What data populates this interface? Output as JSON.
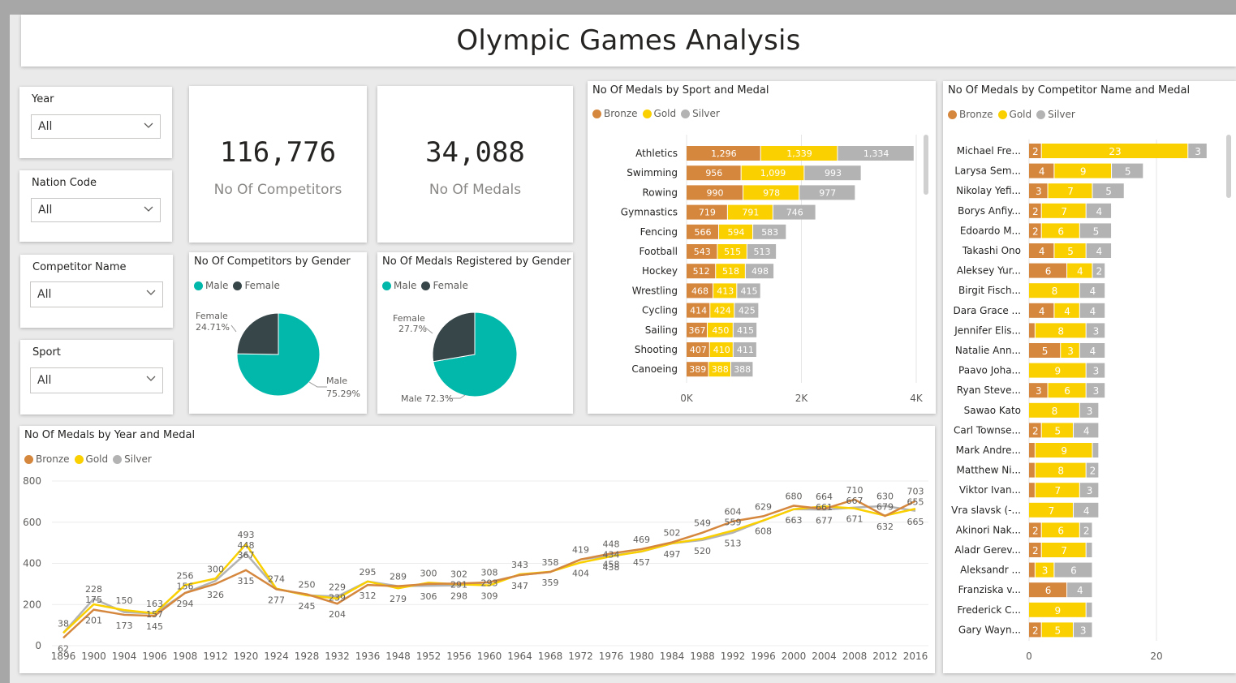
{
  "header": {
    "title": "Olympic Games Analysis"
  },
  "colors": {
    "bronze": "#d5873e",
    "gold": "#fad000",
    "silver": "#b3b3b3",
    "male": "#01b8aa",
    "female": "#374649"
  },
  "slicers": [
    {
      "label": "Year",
      "value": "All"
    },
    {
      "label": "Nation Code",
      "value": "All"
    },
    {
      "label": "Competitor Name",
      "value": "All"
    },
    {
      "label": "Sport",
      "value": "All"
    }
  ],
  "cards": {
    "competitors": {
      "value": "116,776",
      "label": "No Of Competitors"
    },
    "medals": {
      "value": "34,088",
      "label": "No Of Medals"
    }
  },
  "medal_legend": [
    "Bronze",
    "Gold",
    "Silver"
  ],
  "gender_legend": [
    "Male",
    "Female"
  ],
  "pie_competitors": {
    "title": "No Of Competitors by Gender",
    "female_label": "Female",
    "female_pct": "24.71%",
    "female_value": 24.71,
    "male_label": "Male",
    "male_pct": "75.29%",
    "male_value": 75.29
  },
  "pie_medals": {
    "title": "No Of Medals Registered by Gender",
    "female_label": "Female",
    "female_pct": "27.7%",
    "female_value": 27.7,
    "male_label": "Male 72.3%",
    "male_value": 72.3
  },
  "chart_data": [
    {
      "type": "bar",
      "orientation": "horizontal-stacked",
      "title": "No Of Medals by Sport and Medal",
      "categories": [
        "Athletics",
        "Swimming",
        "Rowing",
        "Gymnastics",
        "Fencing",
        "Football",
        "Hockey",
        "Wrestling",
        "Cycling",
        "Sailing",
        "Shooting",
        "Canoeing"
      ],
      "series": [
        {
          "name": "Bronze",
          "values": [
            1296,
            956,
            990,
            719,
            566,
            543,
            512,
            468,
            414,
            367,
            407,
            389
          ]
        },
        {
          "name": "Gold",
          "values": [
            1339,
            1099,
            978,
            791,
            594,
            515,
            518,
            413,
            424,
            450,
            410,
            388
          ]
        },
        {
          "name": "Silver",
          "values": [
            1334,
            993,
            977,
            746,
            583,
            513,
            498,
            415,
            425,
            415,
            411,
            388
          ]
        }
      ],
      "value_labels": [
        [
          "1,296",
          "1,339",
          "1,334"
        ],
        [
          "956",
          "1,099",
          "993"
        ],
        [
          "990",
          "978",
          "977"
        ],
        [
          "719",
          "791",
          "746"
        ],
        [
          "566",
          "594",
          "583"
        ],
        [
          "543",
          "515",
          "513"
        ],
        [
          "512",
          "518",
          "498"
        ],
        [
          "468",
          "413",
          "415"
        ],
        [
          "414",
          "424",
          "425"
        ],
        [
          "367",
          "450",
          "415"
        ],
        [
          "407",
          "410",
          "411"
        ],
        [
          "389",
          "388",
          "388"
        ]
      ],
      "xlim": [
        0,
        4000
      ],
      "xticks": [
        "0K",
        "2K",
        "4K"
      ],
      "legend": "top-left",
      "grid": true
    },
    {
      "type": "bar",
      "orientation": "horizontal-stacked",
      "title": "No Of Medals by Competitor Name and Medal",
      "categories": [
        "Michael Fre...",
        "Larysa Sem...",
        "Nikolay Yefi...",
        "Borys Anfiy...",
        "Edoardo M...",
        "Takashi Ono",
        "Aleksey Yur...",
        "Birgit Fisch...",
        "Dara Grace ...",
        "Jennifer Elis...",
        "Natalie Ann...",
        "Paavo Joha...",
        "Ryan Steve...",
        "Sawao Kato",
        "Carl Townse...",
        "Mark Andre...",
        "Matthew Ni...",
        "Viktor Ivan...",
        "Vra slavsk (-...",
        "Akinori Nak...",
        "Aladr Gerev...",
        "Aleksandr ...",
        "Franziska v...",
        "Frederick C...",
        "Gary Wayn..."
      ],
      "series": [
        {
          "name": "Bronze",
          "values": [
            2,
            4,
            3,
            2,
            2,
            4,
            6,
            0,
            4,
            1,
            5,
            0,
            3,
            0,
            2,
            1,
            1,
            1,
            0,
            2,
            2,
            1,
            6,
            0,
            2
          ]
        },
        {
          "name": "Gold",
          "values": [
            23,
            9,
            7,
            7,
            6,
            5,
            4,
            8,
            4,
            8,
            3,
            9,
            6,
            8,
            5,
            9,
            8,
            7,
            7,
            6,
            7,
            3,
            0,
            9,
            5
          ]
        },
        {
          "name": "Silver",
          "values": [
            3,
            5,
            5,
            4,
            5,
            4,
            2,
            4,
            4,
            3,
            4,
            3,
            3,
            3,
            4,
            1,
            2,
            3,
            4,
            2,
            1,
            6,
            4,
            1,
            3
          ]
        }
      ],
      "xlim": [
        0,
        28
      ],
      "xticks": [
        "0",
        "20"
      ],
      "legend": "top-left",
      "grid": true
    },
    {
      "type": "line",
      "title": "No Of Medals by Year and Medal",
      "x": [
        "1896",
        "1900",
        "1904",
        "1906",
        "1908",
        "1912",
        "1920",
        "1924",
        "1928",
        "1932",
        "1936",
        "1948",
        "1952",
        "1956",
        "1960",
        "1964",
        "1968",
        "1972",
        "1976",
        "1980",
        "1984",
        "1988",
        "1992",
        "1996",
        "2000",
        "2004",
        "2008",
        "2012",
        "2016"
      ],
      "series": [
        {
          "name": "Bronze",
          "values": [
            38,
            175,
            150,
            145,
            256,
            300,
            367,
            274,
            250,
            204,
            295,
            289,
            300,
            302,
            308,
            343,
            358,
            419,
            448,
            469,
            502,
            549,
            604,
            629,
            680,
            664,
            710,
            630,
            703
          ]
        },
        {
          "name": "Gold",
          "values": [
            62,
            201,
            173,
            157,
            294,
            326,
            493,
            277,
            245,
            229,
            312,
            279,
            306,
            298,
            293,
            347,
            359,
            404,
            434,
            458,
            497,
            520,
            559,
            608,
            663,
            677,
            667,
            632,
            665
          ]
        },
        {
          "name": "Silver",
          "values": [
            62,
            228,
            163,
            156,
            256,
            315,
            448,
            277,
            245,
            239,
            312,
            289,
            291,
            293,
            309,
            343,
            358,
            419,
            438,
            457,
            497,
            513,
            549,
            608,
            663,
            661,
            671,
            679,
            655
          ]
        }
      ],
      "point_labels": [
        {
          "x": "1896",
          "top": "38",
          "bottom": "62"
        },
        {
          "x": "1900",
          "top": "228",
          "mid": "175",
          "bottom": "201"
        },
        {
          "x": "1904",
          "top": "150",
          "bottom": "173"
        },
        {
          "x": "1906",
          "top": "163",
          "mid": "157",
          "bottom": "145"
        },
        {
          "x": "1908",
          "top": "256",
          "mid": "156",
          "bottom": "294"
        },
        {
          "x": "1912",
          "top": "300",
          "bottom": "326"
        },
        {
          "x": "1920",
          "top": "493",
          "mid": "448",
          "low": "367",
          "bottom": "315"
        },
        {
          "x": "1924",
          "top": "274",
          "bottom": "277"
        },
        {
          "x": "1928",
          "top": "250",
          "bottom": "245"
        },
        {
          "x": "1932",
          "top": "229",
          "mid": "239",
          "bottom": "204"
        },
        {
          "x": "1936",
          "top": "295",
          "bottom": "312"
        },
        {
          "x": "1948",
          "top": "289",
          "bottom": "279"
        },
        {
          "x": "1952",
          "top": "300",
          "bottom": "306"
        },
        {
          "x": "1956",
          "top": "302",
          "mid": "291",
          "bottom": "298"
        },
        {
          "x": "1960",
          "top": "308",
          "mid": "293",
          "bottom": "309"
        },
        {
          "x": "1964",
          "top": "343",
          "bottom": "347"
        },
        {
          "x": "1968",
          "top": "358",
          "bottom": "359"
        },
        {
          "x": "1972",
          "top": "419",
          "bottom": "404"
        },
        {
          "x": "1976",
          "top": "448",
          "mid": "434",
          "low": "458",
          "bottom": "438"
        },
        {
          "x": "1980",
          "top": "469",
          "bottom": "457"
        },
        {
          "x": "1984",
          "top": "502",
          "bottom": "497"
        },
        {
          "x": "1988",
          "top": "549",
          "bottom": "520"
        },
        {
          "x": "1992",
          "top": "604",
          "mid": "559",
          "bottom": "513"
        },
        {
          "x": "1996",
          "top": "629",
          "bottom": "608"
        },
        {
          "x": "2000",
          "top": "680",
          "bottom": "663"
        },
        {
          "x": "2004",
          "top": "664",
          "mid": "661",
          "bottom": "677"
        },
        {
          "x": "2008",
          "top": "710",
          "mid": "667",
          "bottom": "671"
        },
        {
          "x": "2012",
          "top": "630",
          "mid": "679",
          "bottom": "632"
        },
        {
          "x": "2016",
          "top": "703",
          "mid": "655",
          "bottom": "665"
        }
      ],
      "ylim": [
        0,
        800
      ],
      "yticks": [
        "0",
        "200",
        "400",
        "600",
        "800"
      ],
      "legend": "top-left",
      "grid": true
    }
  ]
}
